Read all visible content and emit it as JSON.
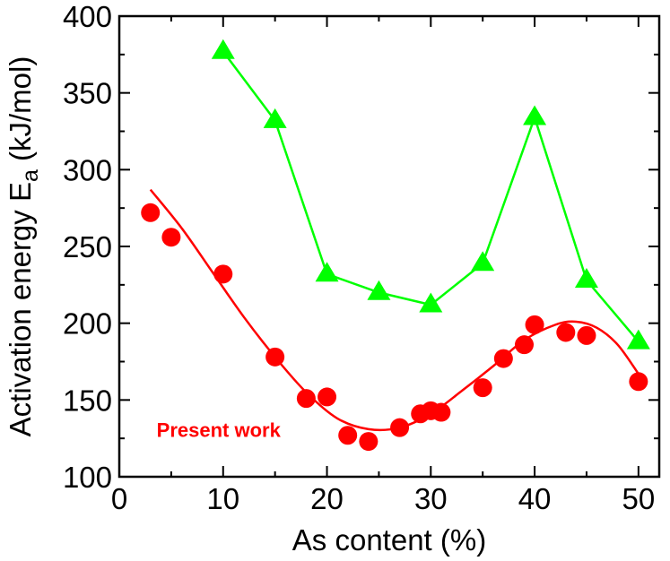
{
  "chart_data": {
    "type": "scatter",
    "xlabel": "As content (%)",
    "ylabel": "Activation energy E",
    "ylabel_subscript": "a",
    "ylabel_unit": " (kJ/mol)",
    "xlim": [
      0,
      52
    ],
    "ylim": [
      100,
      400
    ],
    "xticks": [
      0,
      10,
      20,
      30,
      40,
      50
    ],
    "yticks": [
      100,
      150,
      200,
      250,
      300,
      350,
      400
    ],
    "x_minor_step": 5,
    "y_minor_step": 25,
    "grid": false,
    "annotations": [
      {
        "text": "Present work",
        "color": "#ff0000"
      }
    ],
    "series": [
      {
        "color": "#00ff00",
        "marker": "triangle",
        "connected": true,
        "points": [
          [
            10,
            377
          ],
          [
            15,
            332
          ],
          [
            20,
            232
          ],
          [
            25,
            220
          ],
          [
            30,
            212
          ],
          [
            35,
            239
          ],
          [
            40,
            334
          ],
          [
            45,
            228
          ],
          [
            50,
            188
          ]
        ]
      },
      {
        "color": "#ff0000",
        "marker": "circle",
        "connected": false,
        "points": [
          [
            3,
            272
          ],
          [
            5,
            256
          ],
          [
            10,
            232
          ],
          [
            15,
            178
          ],
          [
            18,
            151
          ],
          [
            20,
            152
          ],
          [
            22,
            127
          ],
          [
            24,
            123
          ],
          [
            27,
            132
          ],
          [
            29,
            141
          ],
          [
            30,
            143
          ],
          [
            31,
            142
          ],
          [
            35,
            158
          ],
          [
            37,
            177
          ],
          [
            39,
            186
          ],
          [
            40,
            199
          ],
          [
            43,
            194
          ],
          [
            45,
            192
          ],
          [
            50,
            162
          ]
        ]
      },
      {
        "color": "#ff0000",
        "marker": "none",
        "style": "fit-curve",
        "points": [
          [
            3,
            287
          ],
          [
            6,
            262
          ],
          [
            9,
            233
          ],
          [
            12,
            204
          ],
          [
            15,
            178
          ],
          [
            18,
            155
          ],
          [
            21,
            138
          ],
          [
            24,
            131
          ],
          [
            27,
            132
          ],
          [
            30,
            141
          ],
          [
            33,
            156
          ],
          [
            36,
            172
          ],
          [
            39,
            189
          ],
          [
            42,
            199
          ],
          [
            44,
            201
          ],
          [
            46,
            197
          ],
          [
            48,
            186
          ],
          [
            50,
            167
          ]
        ]
      }
    ]
  }
}
